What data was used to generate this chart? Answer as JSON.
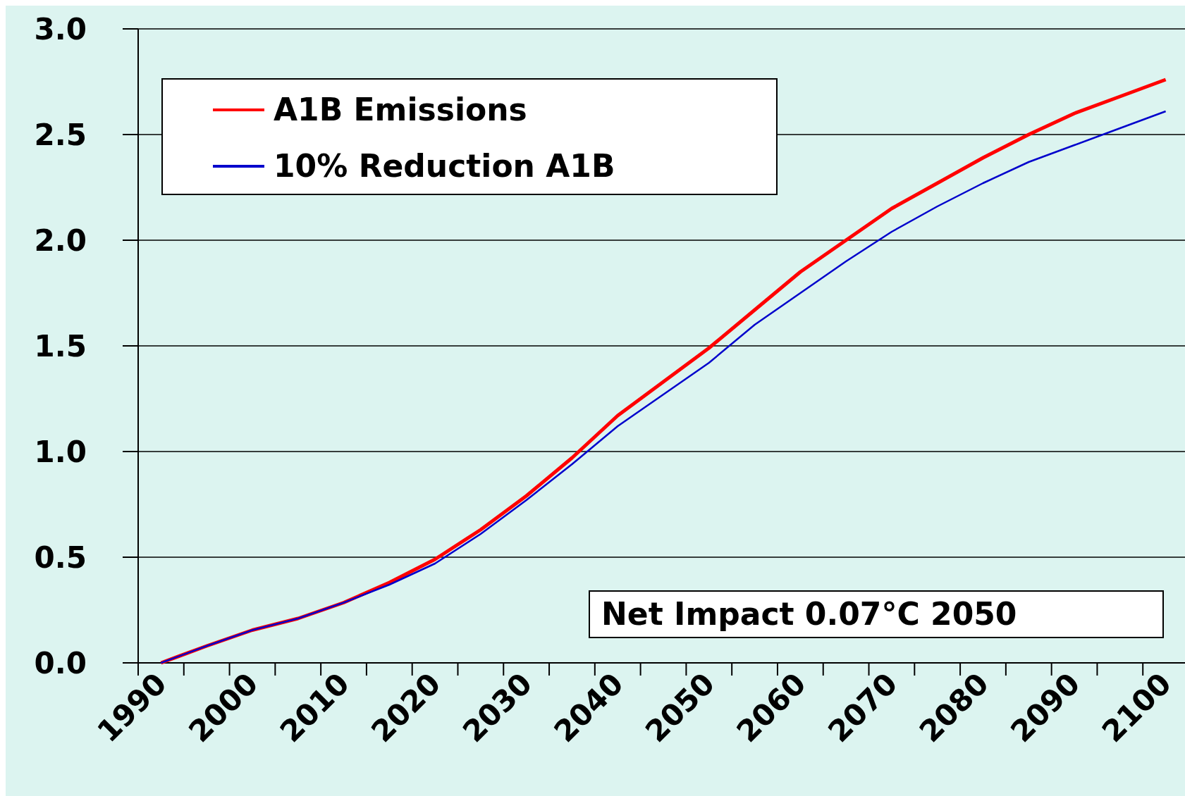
{
  "chart_data": {
    "type": "line",
    "categories": [
      "1990",
      null,
      "2000",
      null,
      "2010",
      null,
      "2020",
      null,
      "2030",
      null,
      "2040",
      null,
      "2050",
      null,
      "2060",
      null,
      "2070",
      null,
      "2080",
      null,
      "2090",
      null,
      "2100"
    ],
    "series": [
      {
        "name": "A1B Emissions",
        "color": "#ff0000",
        "values": [
          0,
          0.08,
          0.155,
          0.21,
          0.285,
          0.38,
          0.49,
          0.63,
          0.79,
          0.97,
          1.17,
          1.33,
          1.49,
          1.67,
          1.85,
          2.0,
          2.15,
          2.27,
          2.39,
          2.5,
          2.6,
          2.68,
          2.76
        ]
      },
      {
        "name": "10% Reduction A1B",
        "color": "#0000cc",
        "values": [
          0,
          0.08,
          0.155,
          0.21,
          0.285,
          0.37,
          0.47,
          0.61,
          0.77,
          0.94,
          1.12,
          1.27,
          1.42,
          1.6,
          1.75,
          1.9,
          2.04,
          2.16,
          2.27,
          2.37,
          2.45,
          2.53,
          2.61
        ]
      }
    ],
    "ylim": [
      0,
      3
    ],
    "yticks": [
      {
        "value": 0,
        "label": "0.0"
      },
      {
        "value": 0.5,
        "label": "0.5"
      },
      {
        "value": 1,
        "label": "1.0"
      },
      {
        "value": 1.5,
        "label": "1.5"
      },
      {
        "value": 2,
        "label": "2.0"
      },
      {
        "value": 2.5,
        "label": "2.5"
      },
      {
        "value": 3,
        "label": "3.0"
      }
    ],
    "grid": "y",
    "legend": "top left",
    "marker": "none",
    "line_style": "solid",
    "annotations": [
      "Net Impact 0.07°C 2050"
    ]
  }
}
